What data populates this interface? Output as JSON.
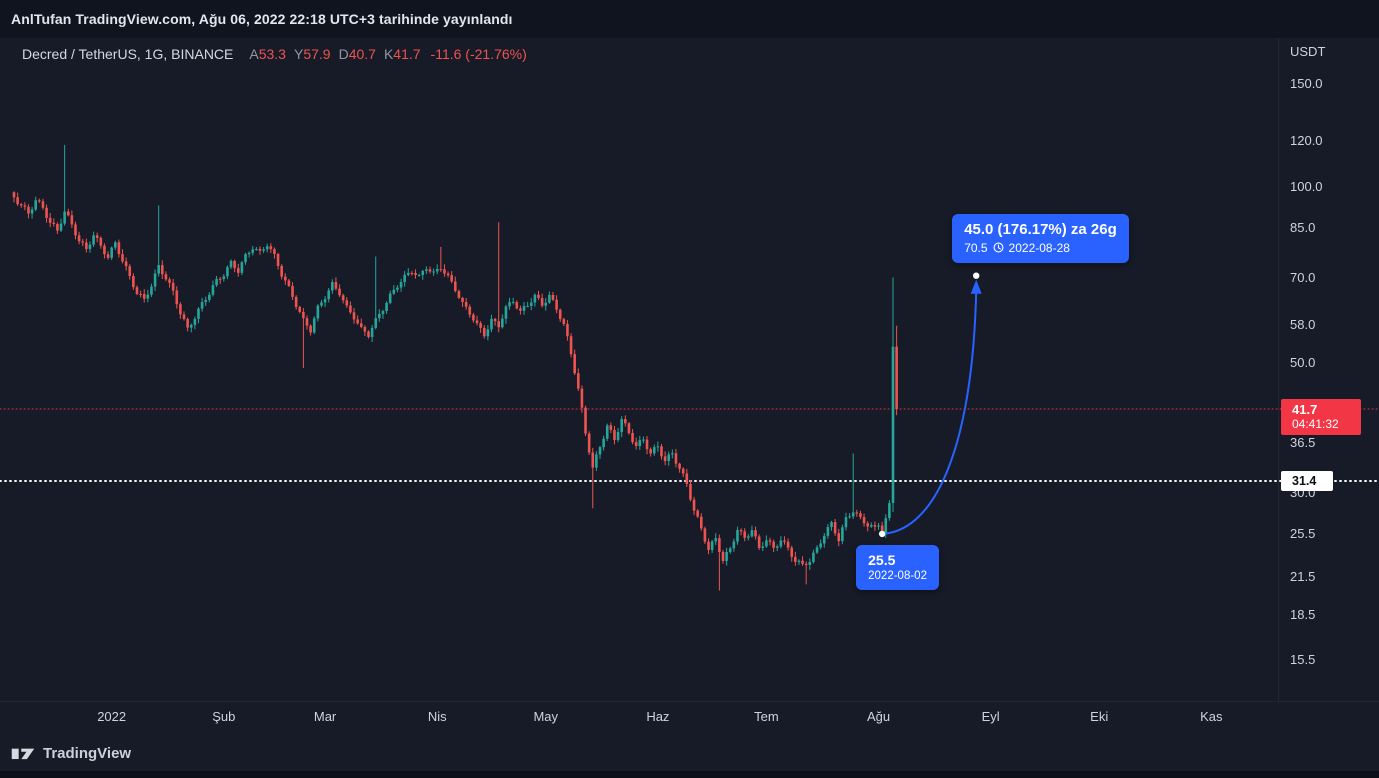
{
  "meta_bar": {
    "text": "AnlTufan TradingView.com, Ağu 06, 2022 22:18 UTC+3 tarihinde yayınlandı"
  },
  "legend": {
    "symbol": "Decred / TetherUS, 1G, BINANCE",
    "ohlc": [
      {
        "label": "A",
        "value": "53.3"
      },
      {
        "label": "Y",
        "value": "57.9"
      },
      {
        "label": "D",
        "value": "40.7"
      },
      {
        "label": "K",
        "value": "41.7"
      }
    ],
    "change": "-11.6 (-21.76%)"
  },
  "price_axis": {
    "currency": "USDT",
    "labels": [
      "150.0",
      "120.0",
      "100.0",
      "85.0",
      "70.0",
      "58.0",
      "50.0",
      "36.5",
      "30.0",
      "25.5",
      "21.5",
      "18.5",
      "15.5"
    ],
    "current_badge": {
      "price": "41.7",
      "countdown": "04:41:32"
    },
    "white_badge": {
      "price": "31.4"
    }
  },
  "time_axis": {
    "labels": [
      {
        "text": "2022",
        "day": 27
      },
      {
        "text": "Şub",
        "day": 58
      },
      {
        "text": "Mar",
        "day": 86
      },
      {
        "text": "Nis",
        "day": 117
      },
      {
        "text": "May",
        "day": 147
      },
      {
        "text": "Haz",
        "day": 178
      },
      {
        "text": "Tem",
        "day": 208
      },
      {
        "text": "Ağu",
        "day": 239
      },
      {
        "text": "Eyl",
        "day": 270
      },
      {
        "text": "Eki",
        "day": 300
      },
      {
        "text": "Kas",
        "day": 331
      }
    ]
  },
  "callouts": {
    "target": {
      "line1": "45.0 (176.17%) za 26g",
      "price": "70.5",
      "date": "2022-08-28"
    },
    "origin": {
      "price": "25.5",
      "date": "2022-08-02"
    }
  },
  "projection": {
    "from": {
      "day": 240,
      "price": 25.5,
      "date": "2022-08-02"
    },
    "to": {
      "day": 266,
      "price": 70.5,
      "date": "2022-08-28"
    }
  },
  "price_lines": [
    {
      "price": 41.7,
      "color": "#f23645",
      "thickness": 1,
      "dash": "1 3"
    },
    {
      "price": 31.4,
      "color": "#ffffff",
      "thickness": 2,
      "dash": "1 4"
    }
  ],
  "colors": {
    "accent": "#2962ff",
    "up": "#26a69a",
    "down": "#ef5350",
    "badge_red": "#f23645"
  },
  "logo": {
    "text": "TradingView"
  },
  "chart_data": {
    "type": "candlestick",
    "symbol": "Decred / TetherUS",
    "interval": "1G",
    "exchange": "BINANCE",
    "unit": "USDT",
    "scale": "log",
    "y_axis_range": [
      13.3,
      180
    ],
    "days": 244,
    "last_bar": {
      "open": 53.3,
      "high": 57.9,
      "low": 40.7,
      "close": 41.7,
      "change": -11.6,
      "change_pct": -21.76
    },
    "anchors": [
      [
        0,
        96
      ],
      [
        2,
        93
      ],
      [
        4,
        90
      ],
      [
        6,
        95
      ],
      [
        8,
        92
      ],
      [
        10,
        87
      ],
      [
        12,
        84
      ],
      [
        14,
        91
      ],
      [
        16,
        86
      ],
      [
        18,
        81
      ],
      [
        20,
        78
      ],
      [
        22,
        83
      ],
      [
        24,
        79
      ],
      [
        26,
        76
      ],
      [
        28,
        80
      ],
      [
        30,
        75
      ],
      [
        32,
        70
      ],
      [
        34,
        66
      ],
      [
        36,
        64
      ],
      [
        38,
        68
      ],
      [
        40,
        73
      ],
      [
        42,
        70
      ],
      [
        44,
        66
      ],
      [
        46,
        61
      ],
      [
        48,
        57
      ],
      [
        50,
        60
      ],
      [
        52,
        63
      ],
      [
        54,
        66
      ],
      [
        56,
        69
      ],
      [
        58,
        71
      ],
      [
        60,
        74
      ],
      [
        62,
        72
      ],
      [
        64,
        76
      ],
      [
        66,
        79
      ],
      [
        68,
        77
      ],
      [
        70,
        80
      ],
      [
        72,
        76
      ],
      [
        74,
        71
      ],
      [
        76,
        67
      ],
      [
        78,
        63
      ],
      [
        80,
        59
      ],
      [
        82,
        57
      ],
      [
        84,
        62
      ],
      [
        86,
        65
      ],
      [
        88,
        68
      ],
      [
        90,
        66
      ],
      [
        92,
        62
      ],
      [
        94,
        60
      ],
      [
        96,
        57
      ],
      [
        98,
        56
      ],
      [
        100,
        59
      ],
      [
        102,
        62
      ],
      [
        104,
        65
      ],
      [
        106,
        68
      ],
      [
        108,
        70
      ],
      [
        110,
        72
      ],
      [
        112,
        70
      ],
      [
        114,
        73
      ],
      [
        116,
        71
      ],
      [
        118,
        73
      ],
      [
        120,
        70
      ],
      [
        122,
        67
      ],
      [
        124,
        63
      ],
      [
        126,
        61
      ],
      [
        128,
        58
      ],
      [
        130,
        56
      ],
      [
        132,
        59
      ],
      [
        134,
        58
      ],
      [
        136,
        62
      ],
      [
        138,
        64
      ],
      [
        140,
        61
      ],
      [
        142,
        63
      ],
      [
        144,
        65
      ],
      [
        146,
        63
      ],
      [
        148,
        65
      ],
      [
        150,
        62
      ],
      [
        152,
        58
      ],
      [
        154,
        52
      ],
      [
        156,
        45
      ],
      [
        158,
        38
      ],
      [
        160,
        33
      ],
      [
        162,
        36
      ],
      [
        164,
        39
      ],
      [
        166,
        37
      ],
      [
        168,
        40
      ],
      [
        170,
        38
      ],
      [
        172,
        36
      ],
      [
        174,
        37
      ],
      [
        176,
        35
      ],
      [
        178,
        36
      ],
      [
        180,
        34
      ],
      [
        182,
        35
      ],
      [
        184,
        33
      ],
      [
        186,
        31
      ],
      [
        188,
        28
      ],
      [
        190,
        26
      ],
      [
        192,
        24
      ],
      [
        194,
        25
      ],
      [
        196,
        23
      ],
      [
        198,
        24
      ],
      [
        200,
        26
      ],
      [
        202,
        25
      ],
      [
        204,
        26
      ],
      [
        206,
        24
      ],
      [
        208,
        25
      ],
      [
        210,
        24
      ],
      [
        212,
        25
      ],
      [
        214,
        24
      ],
      [
        216,
        23
      ],
      [
        218,
        22.5
      ],
      [
        220,
        23
      ],
      [
        222,
        24
      ],
      [
        224,
        25.5
      ],
      [
        226,
        26.5
      ],
      [
        228,
        25
      ],
      [
        230,
        27
      ],
      [
        232,
        28
      ],
      [
        234,
        27
      ],
      [
        236,
        26.5
      ],
      [
        238,
        26
      ],
      [
        239,
        26.5
      ],
      [
        240,
        25.8
      ],
      [
        241,
        27
      ],
      [
        242,
        28.5
      ]
    ],
    "spike_highs": [
      [
        14,
        118
      ],
      [
        40,
        93
      ],
      [
        100,
        76
      ],
      [
        118,
        79
      ],
      [
        134,
        87
      ],
      [
        232,
        35
      ]
    ],
    "spike_lows": [
      [
        80,
        49
      ],
      [
        160,
        28.2
      ],
      [
        195,
        20.4
      ],
      [
        219,
        20.9
      ],
      [
        240,
        25.5
      ]
    ],
    "explicit": [
      {
        "day": 243,
        "o": 28.8,
        "h": 70.0,
        "l": 27.8,
        "c": 53.3
      },
      {
        "day": 244,
        "o": 53.3,
        "h": 57.9,
        "l": 40.7,
        "c": 41.7
      }
    ]
  }
}
